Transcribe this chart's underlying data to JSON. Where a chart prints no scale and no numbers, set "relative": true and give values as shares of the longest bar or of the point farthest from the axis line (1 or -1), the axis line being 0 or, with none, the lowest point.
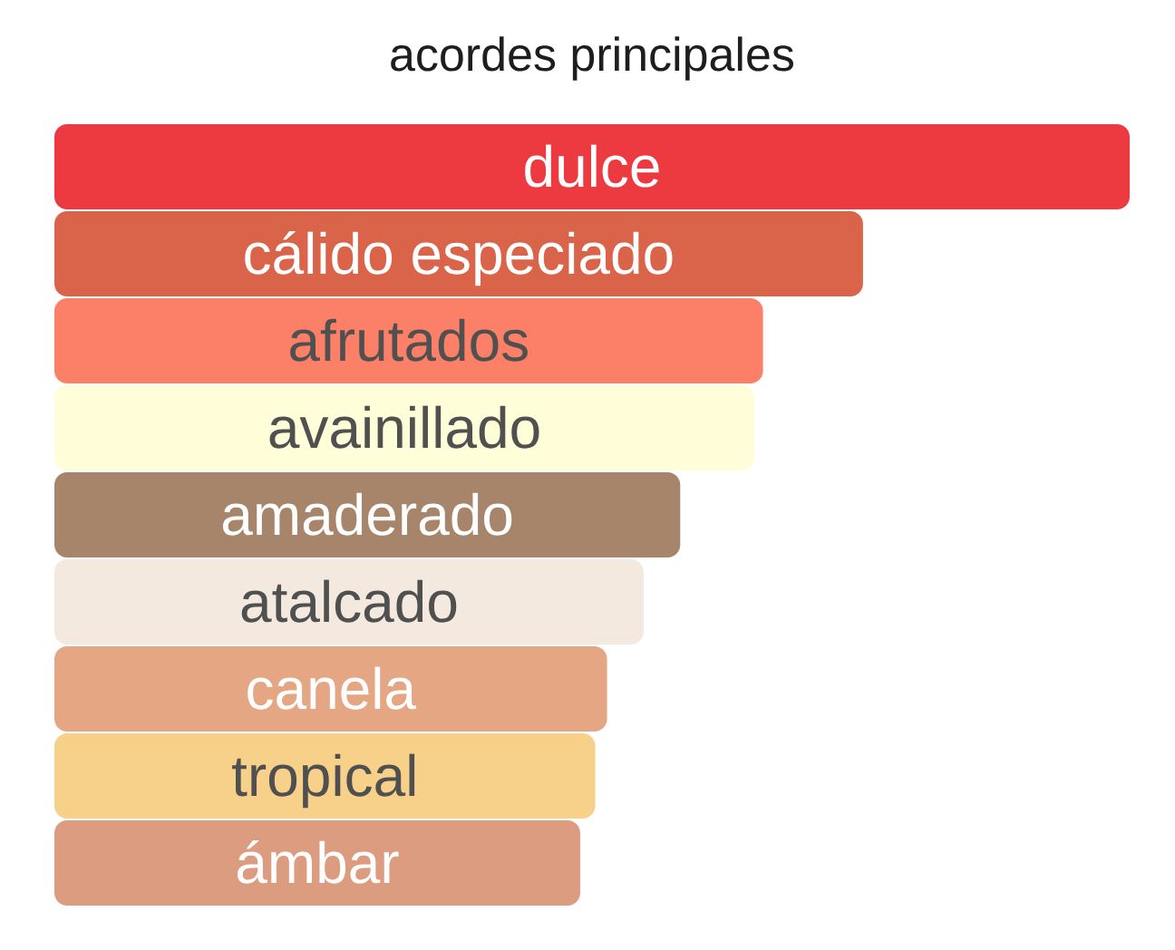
{
  "chart_data": {
    "type": "bar",
    "orientation": "horizontal",
    "relative": true,
    "title": "acordes principales",
    "categories": [
      "dulce",
      "cálido especiado",
      "afrutados",
      "avainillado",
      "amaderado",
      "atalcado",
      "canela",
      "tropical",
      "ámbar"
    ],
    "values": [
      1,
      0.752,
      0.659,
      0.651,
      0.582,
      0.548,
      0.514,
      0.503,
      0.489
    ],
    "colors": [
      "#ec3a40",
      "#d9644a",
      "#fc7f67",
      "#fffed9",
      "#a6856b",
      "#f3e9df",
      "#e5a783",
      "#f7d189",
      "#db9c7f"
    ]
  }
}
